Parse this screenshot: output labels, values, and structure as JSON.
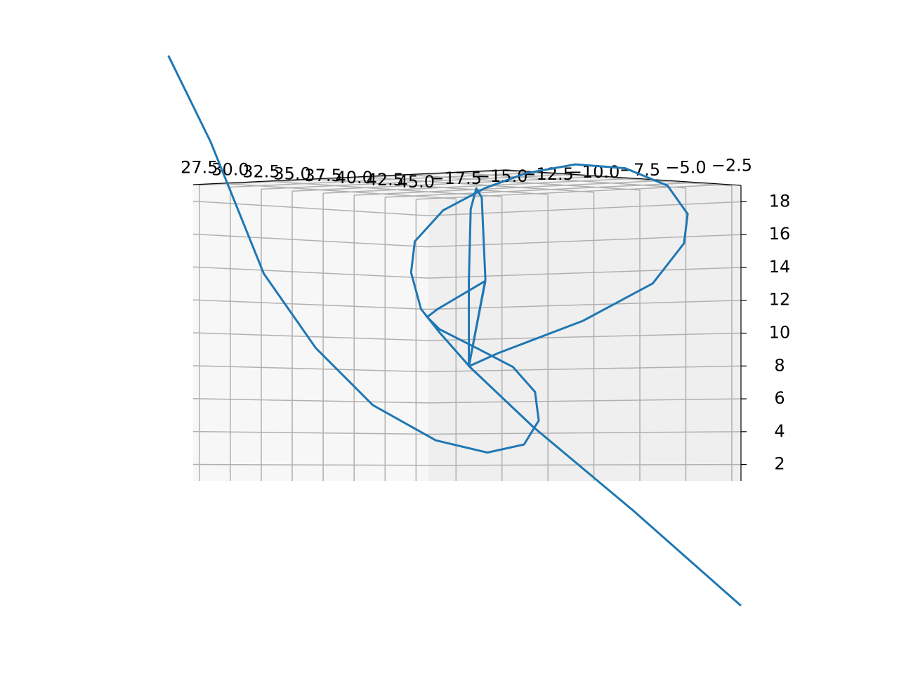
{
  "chart_data": {
    "type": "line3d",
    "xlim": [
      27,
      46
    ],
    "ylim": [
      -19,
      -2
    ],
    "zlim": [
      1,
      19
    ],
    "xticks": [
      27.5,
      {
        "value": 30,
        "label": "30.0"
      },
      32.5,
      {
        "value": 35,
        "label": "35.0"
      },
      37.5,
      {
        "value": 40,
        "label": "40.0"
      },
      42.5,
      {
        "value": 45,
        "label": "45.0"
      }
    ],
    "yticks": [
      {
        "value": -17.5,
        "label": "−17.5"
      },
      {
        "value": -15,
        "label": "−15.0"
      },
      {
        "value": -12.5,
        "label": "−12.5"
      },
      {
        "value": -10,
        "label": "−10.0"
      },
      {
        "value": -7.5,
        "label": "−7.5"
      },
      {
        "value": -5,
        "label": "−5.0"
      },
      {
        "value": -2.5,
        "label": "−2.5"
      }
    ],
    "zticks": [
      2,
      4,
      6,
      8,
      10,
      12,
      14,
      16,
      18
    ],
    "grid": true,
    "series": [
      {
        "color": "#1f77b4",
        "x": [
          25.0,
          28.4,
          32.7,
          36.9,
          41.5,
          46,
          46,
          46,
          46,
          46,
          46,
          46,
          46,
          45.9,
          46,
          46,
          46,
          46,
          46,
          46,
          46,
          46,
          46,
          46,
          46,
          46,
          46,
          46,
          46,
          46,
          46,
          46,
          46,
          46,
          44.9,
          44.6,
          45.4,
          46,
          46,
          46,
          46,
          46
        ],
        "y": [
          -19,
          -19,
          -19,
          -19,
          -19,
          -18.6,
          -15.8,
          -13.8,
          -13.0,
          -13.2,
          -14.4,
          -16.3,
          -18.4,
          -19,
          -18.5,
          -15.9,
          -16.8,
          -16.8,
          -16.7,
          -16.4,
          -16.1,
          -15.9,
          -16.8,
          -15.2,
          -10.6,
          -6.8,
          -5.1,
          -4.9,
          -6.0,
          -8.3,
          -11.0,
          -13.7,
          -15.9,
          -18.2,
          -19,
          -19,
          -19,
          -18.4,
          -16.7,
          -13.3,
          -7.9,
          -2.0
        ],
        "z": [
          26.7,
          21.7,
          13.8,
          9.3,
          5.8,
          3.6,
          2.8,
          3.3,
          4.8,
          6.6,
          8.2,
          9.4,
          10.7,
          11.5,
          12.0,
          13.7,
          8.3,
          13.8,
          18.3,
          19.6,
          19.0,
          13.8,
          8.3,
          9.1,
          11.0,
          13.2,
          15.6,
          17.4,
          19.2,
          20.4,
          20.8,
          20.4,
          19.6,
          18.3,
          16.3,
          14.3,
          12.0,
          10.5,
          8.2,
          4.4,
          -0.8,
          -6.6
        ]
      }
    ]
  }
}
